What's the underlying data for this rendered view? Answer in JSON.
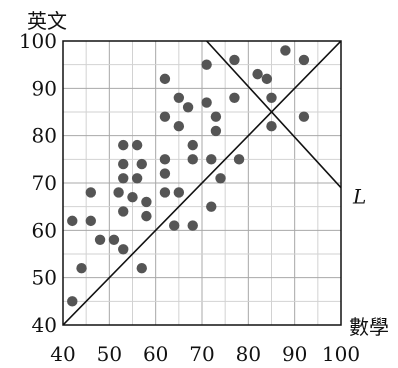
{
  "chart_data": {
    "type": "scatter",
    "xlabel": "數學",
    "ylabel": "英文",
    "xlim": [
      40,
      100
    ],
    "ylim": [
      40,
      100
    ],
    "x_ticks": [
      "40",
      "50",
      "60",
      "70",
      "80",
      "90",
      "100"
    ],
    "y_ticks": [
      "40",
      "50",
      "60",
      "70",
      "80",
      "90",
      "100"
    ],
    "grid": true,
    "grid_step": 5,
    "points": [
      [
        42,
        45
      ],
      [
        42,
        62
      ],
      [
        44,
        52
      ],
      [
        46,
        62
      ],
      [
        46,
        68
      ],
      [
        48,
        58
      ],
      [
        51,
        58
      ],
      [
        52,
        68
      ],
      [
        53,
        78
      ],
      [
        53,
        71
      ],
      [
        53,
        74
      ],
      [
        53,
        64
      ],
      [
        53,
        56
      ],
      [
        55,
        67
      ],
      [
        56,
        78
      ],
      [
        56,
        71
      ],
      [
        57,
        74
      ],
      [
        57,
        52
      ],
      [
        58,
        63
      ],
      [
        58,
        66
      ],
      [
        62,
        92
      ],
      [
        62,
        84
      ],
      [
        62,
        75
      ],
      [
        62,
        72
      ],
      [
        62,
        68
      ],
      [
        64,
        61
      ],
      [
        65,
        88
      ],
      [
        65,
        82
      ],
      [
        65,
        68
      ],
      [
        67,
        86
      ],
      [
        68,
        78
      ],
      [
        68,
        75
      ],
      [
        68,
        61
      ],
      [
        71,
        95
      ],
      [
        71,
        87
      ],
      [
        72,
        75
      ],
      [
        72,
        65
      ],
      [
        73,
        84
      ],
      [
        73,
        81
      ],
      [
        74,
        71
      ],
      [
        77,
        96
      ],
      [
        77,
        88
      ],
      [
        78,
        75
      ],
      [
        82,
        93
      ],
      [
        84,
        92
      ],
      [
        85,
        88
      ],
      [
        85,
        82
      ],
      [
        88,
        98
      ],
      [
        92,
        96
      ],
      [
        92,
        84
      ]
    ],
    "lines": [
      {
        "label": "",
        "from": [
          40,
          40
        ],
        "to": [
          100,
          100
        ]
      },
      {
        "label": "L",
        "from": [
          71,
          100
        ],
        "to": [
          100,
          69
        ]
      }
    ]
  }
}
